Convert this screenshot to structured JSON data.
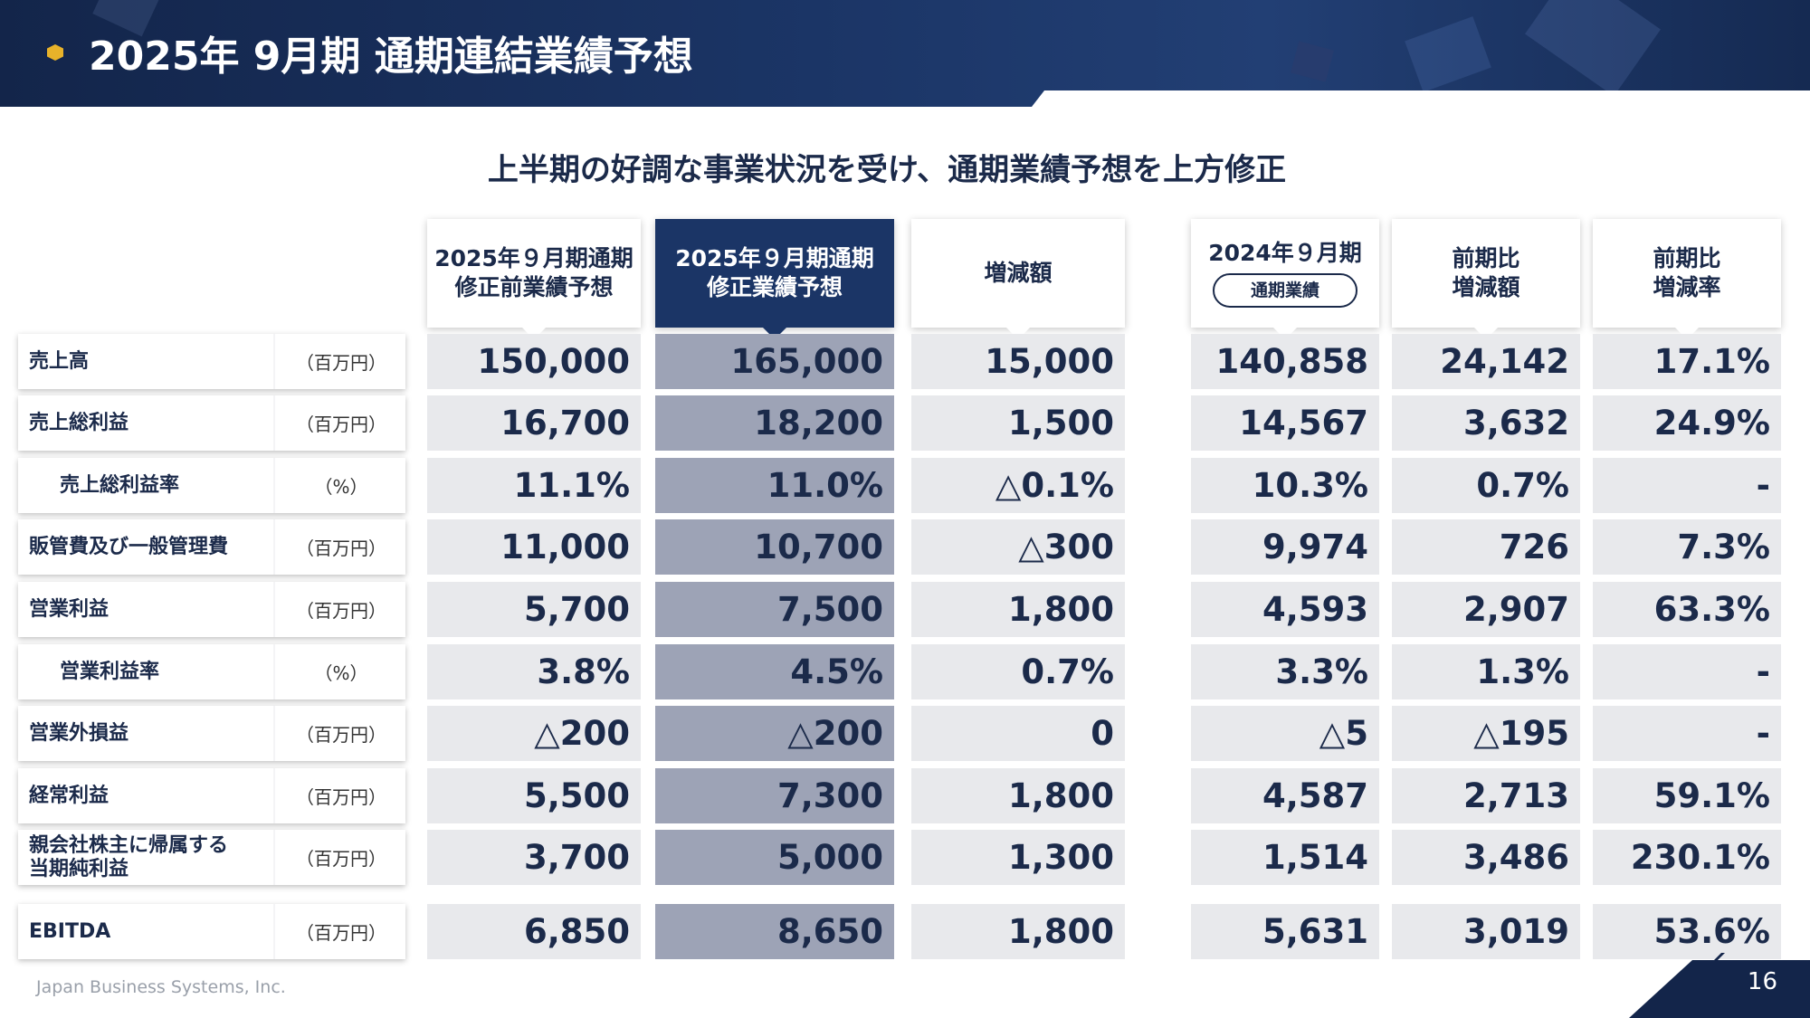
{
  "header": {
    "title": "2025年 9月期 通期連結業績予想"
  },
  "subtitle": "上半期の好調な事業状況を受け、通期業績予想を上方修正",
  "columns": [
    {
      "lines": [
        "2025年９月期通期",
        "修正前業績予想"
      ],
      "highlight": false
    },
    {
      "lines": [
        "2025年９月期通期",
        "修正業績予想"
      ],
      "highlight": true
    },
    {
      "lines": [
        "増減額"
      ],
      "highlight": false
    },
    {
      "lines": [
        "2024年９月期"
      ],
      "pill": "通期業績",
      "highlight": false
    },
    {
      "lines": [
        "前期比",
        "増減額"
      ],
      "highlight": false
    },
    {
      "lines": [
        "前期比",
        "増減率"
      ],
      "highlight": false
    }
  ],
  "rows": [
    {
      "label": "売上高",
      "unit": "（百万円）",
      "indent": false,
      "values": [
        "150,000",
        "165,000",
        "15,000",
        "140,858",
        "24,142",
        "17.1%"
      ]
    },
    {
      "label": "売上総利益",
      "unit": "（百万円）",
      "indent": false,
      "values": [
        "16,700",
        "18,200",
        "1,500",
        "14,567",
        "3,632",
        "24.9%"
      ]
    },
    {
      "label": "売上総利益率",
      "unit": "（%）",
      "indent": true,
      "values": [
        "11.1%",
        "11.0%",
        "△0.1%",
        "10.3%",
        "0.7%",
        "-"
      ]
    },
    {
      "label": "販管費及び一般管理費",
      "unit": "（百万円）",
      "indent": false,
      "values": [
        "11,000",
        "10,700",
        "△300",
        "9,974",
        "726",
        "7.3%"
      ]
    },
    {
      "label": "営業利益",
      "unit": "（百万円）",
      "indent": false,
      "values": [
        "5,700",
        "7,500",
        "1,800",
        "4,593",
        "2,907",
        "63.3%"
      ]
    },
    {
      "label": "営業利益率",
      "unit": "（%）",
      "indent": true,
      "values": [
        "3.8%",
        "4.5%",
        "0.7%",
        "3.3%",
        "1.3%",
        "-"
      ]
    },
    {
      "label": "営業外損益",
      "unit": "（百万円）",
      "indent": false,
      "values": [
        "△200",
        "△200",
        "0",
        "△5",
        "△195",
        "-"
      ]
    },
    {
      "label": "経常利益",
      "unit": "（百万円）",
      "indent": false,
      "values": [
        "5,500",
        "7,300",
        "1,800",
        "4,587",
        "2,713",
        "59.1%"
      ]
    },
    {
      "label": "親会社株主に帰属する\n当期純利益",
      "unit": "（百万円）",
      "indent": false,
      "values": [
        "3,700",
        "5,000",
        "1,300",
        "1,514",
        "3,486",
        "230.1%"
      ]
    },
    {
      "label": "EBITDA",
      "unit": "（百万円）",
      "indent": false,
      "values": [
        "6,850",
        "8,650",
        "1,800",
        "5,631",
        "3,019",
        "53.6%"
      ]
    }
  ],
  "footer": {
    "company": "Japan Business Systems, Inc.",
    "page": "16"
  }
}
